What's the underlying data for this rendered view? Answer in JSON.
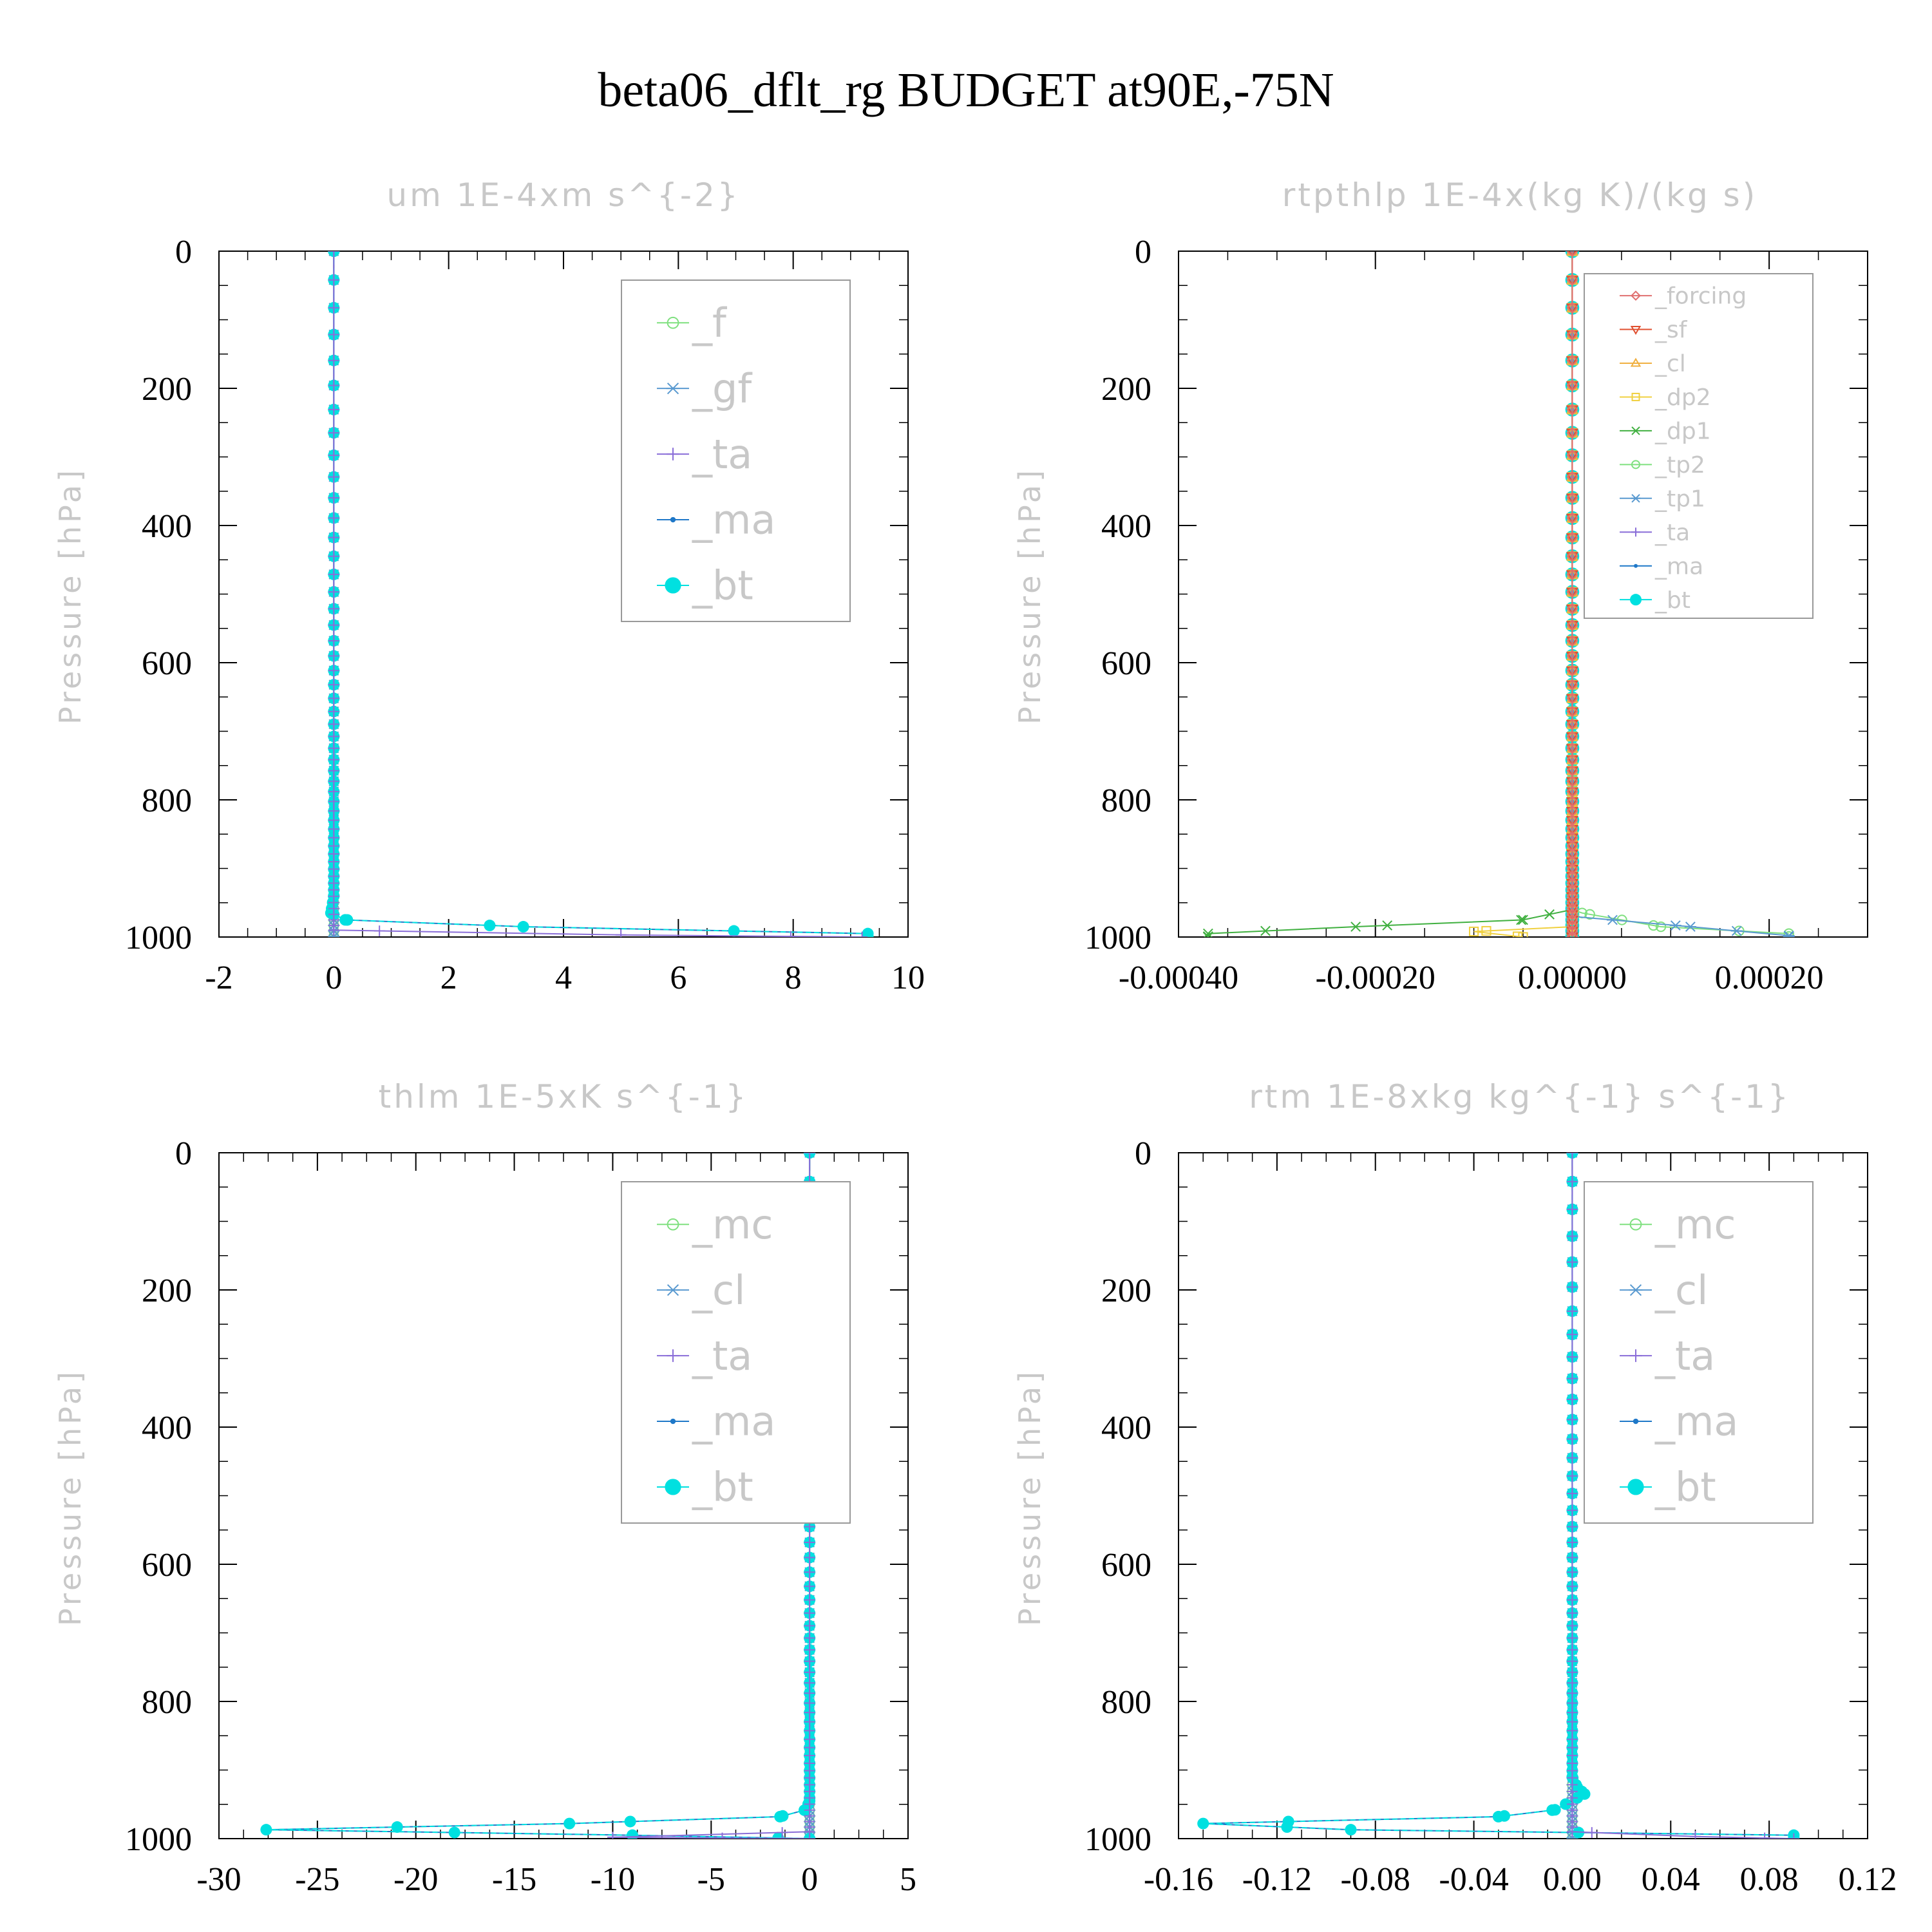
{
  "figure": {
    "title": "beta06_dflt_rg  BUDGET at90E,-75N"
  },
  "chart_data": [
    {
      "type": "line",
      "title": "um  1E-4xm s^{-2}",
      "ylabel": "Pressure [hPa]",
      "xlabel": "",
      "xlim": [
        -2,
        10
      ],
      "ylim": [
        1000,
        0
      ],
      "xticks": [
        "-2",
        "0",
        "2",
        "4",
        "6",
        "8",
        "10"
      ],
      "xtick_values": [
        -2,
        0,
        2,
        4,
        6,
        8,
        10
      ],
      "yticks": [
        "0",
        "200",
        "400",
        "600",
        "800",
        "1000"
      ],
      "ytick_values": [
        0,
        200,
        400,
        600,
        800,
        1000
      ],
      "legend_position": "top-right",
      "legend_font": 62,
      "series": [
        {
          "name": "_f",
          "color": "#7fe07f",
          "marker": "circle-open"
        },
        {
          "name": "_gf",
          "color": "#5a9ad0",
          "marker": "asterisk"
        },
        {
          "name": "_ta",
          "color": "#8a6ed8",
          "marker": "plus"
        },
        {
          "name": "_ma",
          "color": "#1f78c8",
          "marker": "dot"
        },
        {
          "name": "_bt",
          "color": "#00e0e0",
          "marker": "filled"
        }
      ],
      "profiles": [
        {
          "series": "_ma",
          "points": [
            [
              0,
              0
            ],
            [
              0,
              940
            ],
            [
              -0.05,
              965
            ],
            [
              0.2,
              975
            ],
            [
              3.3,
              985
            ],
            [
              9.3,
              995
            ],
            [
              9.3,
              1000
            ]
          ]
        },
        {
          "series": "_bt",
          "points": [
            [
              0,
              0
            ],
            [
              0,
              940
            ],
            [
              -0.05,
              965
            ],
            [
              0.2,
              975
            ],
            [
              3.3,
              985
            ],
            [
              9.3,
              995
            ],
            [
              9.3,
              1000
            ]
          ]
        },
        {
          "series": "_ta",
          "points": [
            [
              0,
              0
            ],
            [
              0,
              990
            ],
            [
              5,
              997
            ],
            [
              9.2,
              1000
            ]
          ]
        }
      ]
    },
    {
      "type": "line",
      "title": "rtpthlp  1E-4x(kg K)/(kg s)",
      "ylabel": "Pressure [hPa]",
      "xlabel": "",
      "xlim": [
        -0.0004,
        0.0003
      ],
      "ylim": [
        1000,
        0
      ],
      "xticks": [
        "-0.00040",
        "-0.00020",
        "0.00000",
        "0.00020"
      ],
      "xtick_values": [
        -0.0004,
        -0.0002,
        0,
        0.0002
      ],
      "yticks": [
        "0",
        "200",
        "400",
        "600",
        "800",
        "1000"
      ],
      "ytick_values": [
        0,
        200,
        400,
        600,
        800,
        1000
      ],
      "legend_position": "top-right",
      "legend_font": 36,
      "series": [
        {
          "name": "_forcing",
          "color": "#e07070",
          "marker": "diamond"
        },
        {
          "name": "_sf",
          "color": "#e05030",
          "marker": "triangle-down"
        },
        {
          "name": "_cl",
          "color": "#f0b040",
          "marker": "triangle-up"
        },
        {
          "name": "_dp2",
          "color": "#f0d040",
          "marker": "square"
        },
        {
          "name": "_dp1",
          "color": "#40b040",
          "marker": "cross"
        },
        {
          "name": "_tp2",
          "color": "#7fe07f",
          "marker": "circle-open"
        },
        {
          "name": "_tp1",
          "color": "#5a9ad0",
          "marker": "asterisk"
        },
        {
          "name": "_ta",
          "color": "#8a6ed8",
          "marker": "plus"
        },
        {
          "name": "_ma",
          "color": "#1f78c8",
          "marker": "dot"
        },
        {
          "name": "_bt",
          "color": "#00e0e0",
          "marker": "filled"
        }
      ],
      "profiles": [
        {
          "series": "_dp1",
          "points": [
            [
              0,
              0
            ],
            [
              0,
              960
            ],
            [
              -5e-05,
              975
            ],
            [
              -0.00022,
              985
            ],
            [
              -0.00037,
              995
            ],
            [
              -0.00037,
              1000
            ]
          ]
        },
        {
          "series": "_tp2",
          "points": [
            [
              0,
              0
            ],
            [
              0,
              960
            ],
            [
              1e-05,
              965
            ],
            [
              9e-05,
              985
            ],
            [
              0.00022,
              995
            ]
          ]
        },
        {
          "series": "_tp1",
          "points": [
            [
              0,
              0
            ],
            [
              0,
              970
            ],
            [
              0.00012,
              985
            ],
            [
              0.00022,
              998
            ]
          ]
        },
        {
          "series": "_dp2",
          "points": [
            [
              0,
              0
            ],
            [
              0,
              985
            ],
            [
              -0.0001,
              992
            ],
            [
              -5e-05,
              1000
            ]
          ]
        },
        {
          "series": "_cl",
          "points": [
            [
              0,
              0
            ],
            [
              0,
              1000
            ]
          ]
        },
        {
          "series": "_sf",
          "points": [
            [
              0,
              0
            ],
            [
              0,
              1000
            ]
          ]
        },
        {
          "series": "_forcing",
          "points": [
            [
              0,
              0
            ],
            [
              0,
              1000
            ]
          ]
        }
      ]
    },
    {
      "type": "line",
      "title": "thlm  1E-5xK s^{-1}",
      "ylabel": "Pressure [hPa]",
      "xlabel": "",
      "xlim": [
        -30,
        5
      ],
      "ylim": [
        1000,
        0
      ],
      "xticks": [
        "-30",
        "-25",
        "-20",
        "-15",
        "-10",
        "-5",
        "0",
        "5"
      ],
      "xtick_values": [
        -30,
        -25,
        -20,
        -15,
        -10,
        -5,
        0,
        5
      ],
      "yticks": [
        "0",
        "200",
        "400",
        "600",
        "800",
        "1000"
      ],
      "ytick_values": [
        0,
        200,
        400,
        600,
        800,
        1000
      ],
      "legend_position": "top-right",
      "legend_font": 62,
      "series": [
        {
          "name": "_mc",
          "color": "#7fe07f",
          "marker": "circle-open"
        },
        {
          "name": "_cl",
          "color": "#5a9ad0",
          "marker": "asterisk"
        },
        {
          "name": "_ta",
          "color": "#8a6ed8",
          "marker": "plus"
        },
        {
          "name": "_ma",
          "color": "#1f78c8",
          "marker": "dot"
        },
        {
          "name": "_bt",
          "color": "#00e0e0",
          "marker": "filled"
        }
      ],
      "profiles": [
        {
          "series": "_ma",
          "points": [
            [
              0,
              0
            ],
            [
              0,
              945
            ],
            [
              -0.2,
              958
            ],
            [
              -1.5,
              968
            ],
            [
              -12.2,
              978
            ],
            [
              -27.6,
              987
            ],
            [
              -9,
              995
            ],
            [
              0,
              1000
            ]
          ]
        },
        {
          "series": "_bt",
          "points": [
            [
              0,
              0
            ],
            [
              0,
              945
            ],
            [
              -0.2,
              958
            ],
            [
              -1.5,
              968
            ],
            [
              -12.2,
              978
            ],
            [
              -27.6,
              987
            ],
            [
              -9,
              995
            ],
            [
              0,
              1000
            ]
          ]
        },
        {
          "series": "_ta",
          "points": [
            [
              0,
              0
            ],
            [
              0,
              990
            ],
            [
              -10,
              998
            ],
            [
              0,
              1000
            ]
          ]
        }
      ]
    },
    {
      "type": "line",
      "title": "rtm  1E-8xkg kg^{-1} s^{-1}",
      "ylabel": "Pressure [hPa]",
      "xlabel": "",
      "xlim": [
        -0.16,
        0.12
      ],
      "ylim": [
        1000,
        0
      ],
      "xticks": [
        "-0.16",
        "-0.12",
        "-0.08",
        "-0.04",
        "0.00",
        "0.04",
        "0.08",
        "0.12"
      ],
      "xtick_values": [
        -0.16,
        -0.12,
        -0.08,
        -0.04,
        0,
        0.04,
        0.08,
        0.12
      ],
      "yticks": [
        "0",
        "200",
        "400",
        "600",
        "800",
        "1000"
      ],
      "ytick_values": [
        0,
        200,
        400,
        600,
        800,
        1000
      ],
      "legend_position": "top-right",
      "legend_font": 62,
      "series": [
        {
          "name": "_mc",
          "color": "#7fe07f",
          "marker": "circle-open"
        },
        {
          "name": "_cl",
          "color": "#5a9ad0",
          "marker": "asterisk"
        },
        {
          "name": "_ta",
          "color": "#8a6ed8",
          "marker": "plus"
        },
        {
          "name": "_ma",
          "color": "#1f78c8",
          "marker": "dot"
        },
        {
          "name": "_bt",
          "color": "#00e0e0",
          "marker": "filled"
        }
      ],
      "profiles": [
        {
          "series": "_ma",
          "points": [
            [
              0,
              0
            ],
            [
              0,
              910
            ],
            [
              0.002,
              925
            ],
            [
              0.005,
              935
            ],
            [
              -0.007,
              958
            ],
            [
              -0.03,
              968
            ],
            [
              -0.15,
              978
            ],
            [
              -0.09,
              987
            ],
            [
              0.09,
              995
            ],
            [
              0.09,
              1000
            ]
          ]
        },
        {
          "series": "_bt",
          "points": [
            [
              0,
              0
            ],
            [
              0,
              910
            ],
            [
              0.002,
              925
            ],
            [
              0.005,
              935
            ],
            [
              -0.007,
              958
            ],
            [
              -0.03,
              968
            ],
            [
              -0.15,
              978
            ],
            [
              -0.09,
              987
            ],
            [
              0.09,
              995
            ],
            [
              0.09,
              1000
            ]
          ]
        },
        {
          "series": "_ta",
          "points": [
            [
              0,
              0
            ],
            [
              0,
              990
            ],
            [
              0.05,
              997
            ],
            [
              0.09,
              1000
            ]
          ]
        }
      ]
    }
  ]
}
